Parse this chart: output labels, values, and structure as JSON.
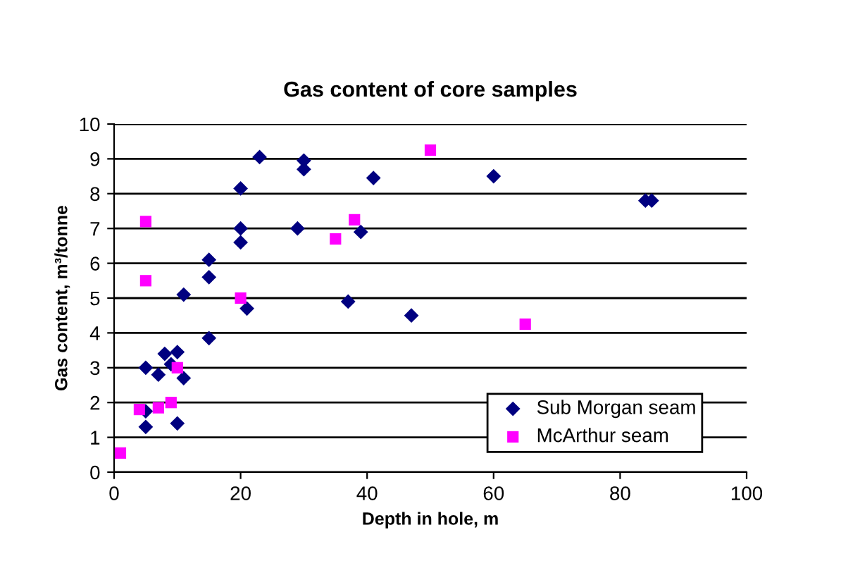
{
  "chart_data": {
    "type": "scatter",
    "title": "Gas content of core samples",
    "xlabel": "Depth in hole, m",
    "ylabel": "Gas content, m³/tonne",
    "xlim": [
      0,
      100
    ],
    "xticks": [
      0,
      20,
      40,
      60,
      80,
      100
    ],
    "ylim": [
      0,
      10
    ],
    "yticks": [
      0,
      1,
      2,
      3,
      4,
      5,
      6,
      7,
      8,
      9,
      10
    ],
    "grid": "y",
    "legend": "bottom right",
    "series": [
      {
        "name": "Sub Morgan seam",
        "color": "#000080",
        "marker": "diamond",
        "x": [
          5,
          5,
          5,
          7,
          8,
          9,
          10,
          10,
          11,
          11,
          15,
          15,
          15,
          20,
          20,
          20,
          21,
          23,
          29,
          30,
          30,
          37,
          39,
          41,
          47,
          60,
          84,
          85
        ],
        "values": [
          1.75,
          1.3,
          3.0,
          2.8,
          3.4,
          3.1,
          3.45,
          1.4,
          2.7,
          5.1,
          3.85,
          6.1,
          5.6,
          8.15,
          7.0,
          6.6,
          4.7,
          9.05,
          7.0,
          8.95,
          8.7,
          4.9,
          6.9,
          8.45,
          4.5,
          8.5,
          7.8,
          7.8
        ]
      },
      {
        "name": "McArthur seam",
        "color": "#ff00ff",
        "marker": "square",
        "x": [
          1,
          4,
          5,
          5,
          7,
          9,
          10,
          20,
          35,
          38,
          50,
          65
        ],
        "values": [
          0.55,
          1.8,
          7.2,
          5.5,
          1.85,
          2.0,
          3.0,
          5.0,
          6.7,
          7.25,
          9.25,
          4.25
        ]
      }
    ]
  }
}
